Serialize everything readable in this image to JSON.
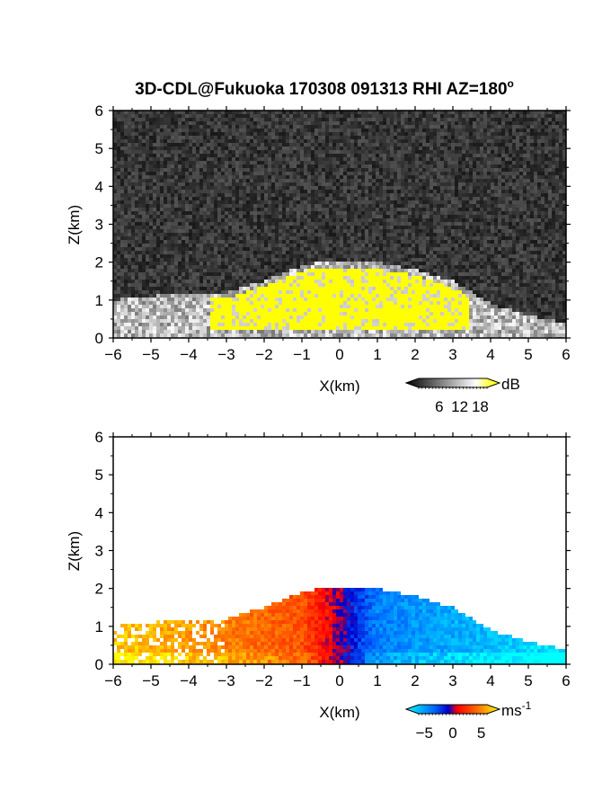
{
  "figure": {
    "title": "3D-CDL@Fukuoka 170308 091313 RHI AZ=180",
    "title_degree_mark": "o"
  },
  "chart_data": [
    {
      "type": "heatmap",
      "quantity": "backscatter intensity",
      "xlabel": "X(km)",
      "ylabel": "Z(km)",
      "xlim": [
        -6,
        6
      ],
      "ylim": [
        0,
        6
      ],
      "x_ticks": [
        "-6",
        "-5",
        "-4",
        "-3",
        "-2",
        "-1",
        "0",
        "1",
        "2",
        "3",
        "4",
        "5",
        "6"
      ],
      "y_ticks": [
        "0",
        "1",
        "2",
        "3",
        "4",
        "5",
        "6"
      ],
      "grid": false,
      "colorbar": {
        "unit": "dB",
        "ticks": [
          "6",
          "12",
          "18"
        ],
        "tick_values": [
          6,
          12,
          18
        ],
        "range": [
          0,
          20
        ],
        "colormap": "grayscale-to-yellow",
        "colors": [
          "#000000",
          "#ffffff",
          "#ffff00"
        ]
      },
      "echo_region": {
        "description_values": "echo top (km) vs X (km)",
        "x": [
          -6.0,
          -5.0,
          -4.0,
          -3.0,
          -2.0,
          -1.0,
          -0.5,
          0.0,
          1.0,
          2.0,
          3.0,
          4.0,
          5.0,
          6.0
        ],
        "top": [
          1.0,
          1.1,
          1.2,
          1.2,
          1.5,
          1.9,
          2.0,
          2.0,
          2.0,
          1.8,
          1.5,
          0.9,
          0.6,
          0.4
        ]
      }
    },
    {
      "type": "heatmap",
      "quantity": "radial velocity",
      "xlabel": "X(km)",
      "ylabel": "Z(km)",
      "xlim": [
        -6,
        6
      ],
      "ylim": [
        0,
        6
      ],
      "x_ticks": [
        "-6",
        "-5",
        "-4",
        "-3",
        "-2",
        "-1",
        "0",
        "1",
        "2",
        "3",
        "4",
        "5",
        "6"
      ],
      "y_ticks": [
        "0",
        "1",
        "2",
        "3",
        "4",
        "5",
        "6"
      ],
      "grid": false,
      "colorbar": {
        "unit": "ms",
        "unit_superscript": "-1",
        "ticks": [
          "-5",
          "0",
          "5"
        ],
        "tick_values": [
          -5,
          0,
          5
        ],
        "range": [
          -6,
          6
        ],
        "colormap": "cyan-blue-red-yellow",
        "colors": [
          "#00ffff",
          "#0000ff",
          "#ff0000",
          "#ffff00"
        ]
      },
      "velocity_profile": {
        "description_values": "approximate radial velocity (m/s) vs X (km)",
        "x": [
          -6.0,
          -5.0,
          -4.0,
          -3.0,
          -2.0,
          -1.0,
          0.0,
          1.0,
          2.0,
          3.0,
          4.0,
          5.0,
          6.0
        ],
        "v": [
          5.0,
          4.5,
          4.0,
          3.5,
          3.0,
          2.5,
          0.0,
          -3.0,
          -3.5,
          -4.0,
          -4.5,
          -5.0,
          -5.5
        ]
      }
    }
  ]
}
